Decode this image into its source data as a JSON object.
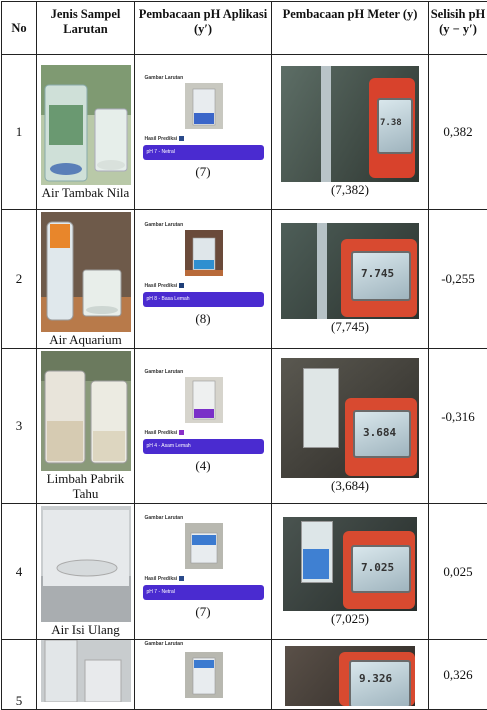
{
  "table": {
    "headers": {
      "no": "No",
      "sample": "Jenis Sampel Larutan",
      "app": "Pembacaan pH Aplikasi (y′)",
      "meter": "Pembacaan pH Meter (y)",
      "diff": "Selisih pH (y − y′)"
    },
    "rows": [
      {
        "no": "1",
        "sample": "Air Tambak Nila",
        "app_label": "Gambar Larutan",
        "pred_label": "Hasil Prediksi",
        "pred_text": "pH 7 - Netral",
        "app_value": "(7)",
        "meter_display": "7.38",
        "meter_value": "(7,382)",
        "diff": "0,382",
        "swatch_color": "#2a4a8a"
      },
      {
        "no": "2",
        "sample": "Air Aquarium",
        "app_label": "Gambar Larutan",
        "pred_label": "Hasil Prediksi",
        "pred_text": "pH 8 - Basa Lemah",
        "app_value": "(8)",
        "meter_display": "7.745",
        "meter_value": "(7,745)",
        "diff": "-0,255",
        "swatch_color": "#1f3f78"
      },
      {
        "no": "3",
        "sample": "Limbah Pabrik Tahu",
        "app_label": "Gambar Larutan",
        "pred_label": "Hasil Prediksi",
        "pred_text": "pH 4 - Asam Lemah",
        "app_value": "(4)",
        "meter_display": "3.684",
        "meter_value": "(3,684)",
        "diff": "-0,316",
        "swatch_color": "#8a2fc8"
      },
      {
        "no": "4",
        "sample": "Air Isi Ulang",
        "app_label": "Gambar Larutan",
        "pred_label": "Hasil Prediksi",
        "pred_text": "pH 7 - Netral",
        "app_value": "(7)",
        "meter_display": "7.025",
        "meter_value": "(7,025)",
        "diff": "0,025",
        "swatch_color": "#2a4a8a"
      },
      {
        "no": "5",
        "sample": "",
        "app_label": "",
        "pred_label": "",
        "pred_text": "",
        "app_value": "",
        "meter_display": "9.326",
        "meter_value": "",
        "diff": "0,326",
        "swatch_color": "#2a4a8a"
      }
    ]
  }
}
